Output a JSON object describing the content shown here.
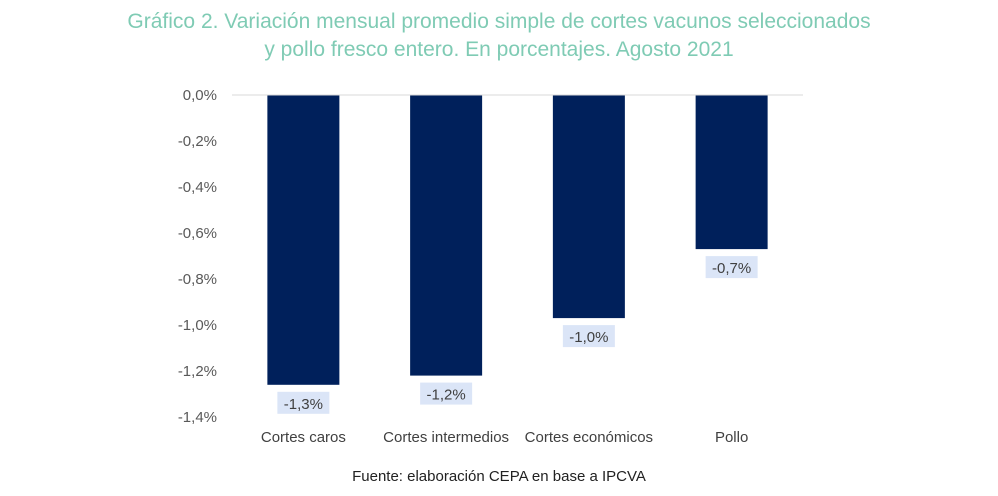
{
  "title_line1": "Gráfico 2. Variación mensual promedio simple de cortes vacunos seleccionados",
  "title_line2": "y pollo fresco entero. En porcentajes. Agosto 2021",
  "source": "Fuente: elaboración CEPA en base a IPCVA",
  "colors": {
    "bar": "#00205b",
    "title": "#7fcbb4",
    "label_bg": "#dbe5f7",
    "grid": "#d9d9d9"
  },
  "chart_data": {
    "type": "bar",
    "categories": [
      "Cortes caros",
      "Cortes intermedios",
      "Cortes económicos",
      "Pollo"
    ],
    "values": [
      -1.26,
      -1.22,
      -0.97,
      -0.67
    ],
    "data_labels": [
      "-1,3%",
      "-1,2%",
      "-1,0%",
      "-0,7%"
    ],
    "ylim": [
      -1.4,
      0
    ],
    "yticks": [
      0,
      -0.2,
      -0.4,
      -0.6,
      -0.8,
      -1.0,
      -1.2,
      -1.4
    ],
    "ytick_labels": [
      "0,0%",
      "-0,2%",
      "-0,4%",
      "-0,6%",
      "-0,8%",
      "-1,0%",
      "-1,2%",
      "-1,4%"
    ],
    "grid": false,
    "legend": "none"
  }
}
